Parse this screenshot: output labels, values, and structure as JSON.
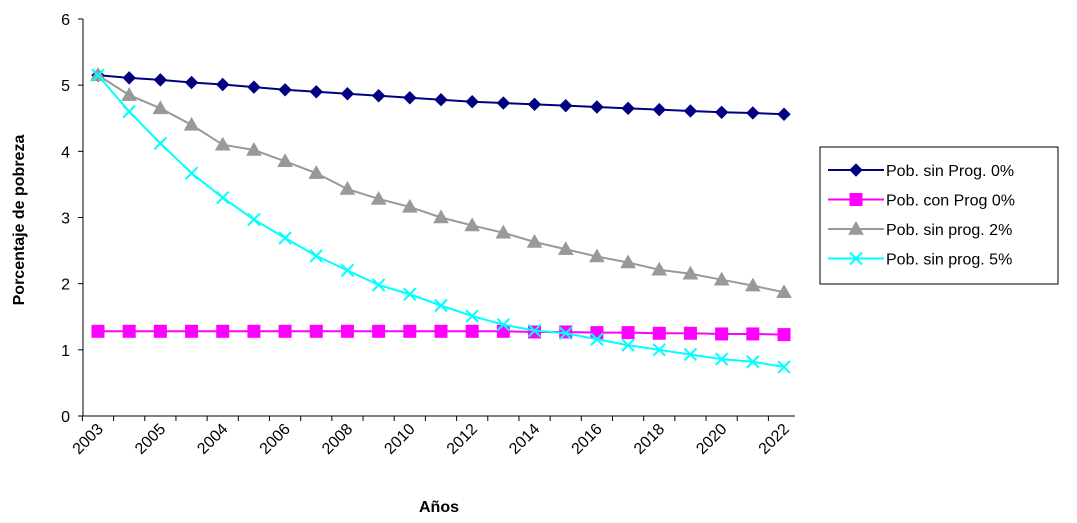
{
  "chart_data": {
    "type": "line",
    "title": "",
    "xlabel": "Años",
    "ylabel": "Porcentaje de pobreza",
    "ylim": [
      0,
      6
    ],
    "yticks": [
      0,
      1,
      2,
      3,
      4,
      5,
      6
    ],
    "x_tick_labels": [
      "2003",
      "2005",
      "2004",
      "2006",
      "2008",
      "2010",
      "2012",
      "2014",
      "2016",
      "2018",
      "2020",
      "2022"
    ],
    "grid": false,
    "legend_position": "right",
    "series": [
      {
        "name": "Pob. sin Prog. 0%",
        "color": "#000080",
        "marker": "diamond",
        "values": [
          5.15,
          5.11,
          5.08,
          5.04,
          5.01,
          4.97,
          4.93,
          4.9,
          4.87,
          4.84,
          4.81,
          4.78,
          4.75,
          4.73,
          4.71,
          4.69,
          4.67,
          4.65,
          4.63,
          4.61,
          4.59,
          4.58,
          4.56
        ]
      },
      {
        "name": "Pob. con Prog  0%",
        "color": "#ff00ff",
        "marker": "square",
        "values": [
          1.28,
          1.28,
          1.28,
          1.28,
          1.28,
          1.28,
          1.28,
          1.28,
          1.28,
          1.28,
          1.28,
          1.28,
          1.28,
          1.28,
          1.27,
          1.27,
          1.26,
          1.26,
          1.25,
          1.25,
          1.24,
          1.24,
          1.23
        ]
      },
      {
        "name": "Pob. sin prog. 2%",
        "color": "#999999",
        "marker": "triangle",
        "values": [
          5.15,
          4.85,
          4.65,
          4.4,
          4.1,
          4.02,
          3.85,
          3.67,
          3.43,
          3.28,
          3.16,
          3.0,
          2.88,
          2.77,
          2.63,
          2.52,
          2.41,
          2.32,
          2.21,
          2.15,
          2.06,
          1.97,
          1.87
        ]
      },
      {
        "name": "Pob. sin prog. 5%",
        "color": "#00ffff",
        "marker": "x",
        "values": [
          5.15,
          4.6,
          4.12,
          3.67,
          3.3,
          2.97,
          2.69,
          2.42,
          2.2,
          1.98,
          1.84,
          1.67,
          1.51,
          1.38,
          1.29,
          1.25,
          1.16,
          1.07,
          1.0,
          0.93,
          0.86,
          0.82,
          0.74
        ]
      }
    ]
  }
}
